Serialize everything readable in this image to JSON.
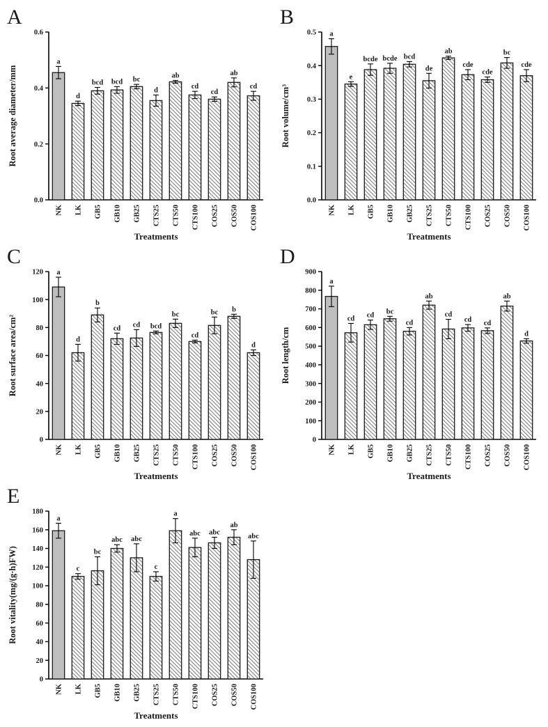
{
  "figure": {
    "background": "#ffffff",
    "colors": {
      "nk_bar_fill": "#bebebe",
      "hatch_line": "#808080",
      "bar_outline": "#1a1a1a",
      "axis": "#000000",
      "text": "#1a1a1a"
    },
    "xlabel": "Treatments",
    "categories": [
      "NK",
      "LK",
      "GB5",
      "GB10",
      "GB25",
      "CTS25",
      "CTS50",
      "CTS100",
      "COS25",
      "COS50",
      "COS100"
    ]
  },
  "chart_data": [
    {
      "type": "bar",
      "panel": "A",
      "ylabel": "Root average diameter/mm",
      "xlabel": "Treatments",
      "ylim": [
        0,
        0.6
      ],
      "ytick_values": [
        0,
        0.2,
        0.4,
        0.6
      ],
      "ytick_labels": [
        "0.0",
        "0.2",
        "0.4",
        "0.6"
      ],
      "categories": [
        "NK",
        "LK",
        "GB5",
        "GB10",
        "GB25",
        "CTS25",
        "CTS50",
        "CTS100",
        "COS25",
        "COS50",
        "COS100"
      ],
      "values": [
        0.455,
        0.345,
        0.39,
        0.393,
        0.405,
        0.355,
        0.422,
        0.375,
        0.36,
        0.42,
        0.372
      ],
      "errors": [
        0.022,
        0.008,
        0.012,
        0.012,
        0.008,
        0.02,
        0.005,
        0.013,
        0.008,
        0.016,
        0.016
      ],
      "sig_letters": [
        "a",
        "d",
        "bcd",
        "bcd",
        "bc",
        "d",
        "ab",
        "cd",
        "cd",
        "ab",
        "cd"
      ]
    },
    {
      "type": "bar",
      "panel": "B",
      "ylabel": "Root volume/cm³",
      "xlabel": "Treatments",
      "ylim": [
        0,
        0.5
      ],
      "ytick_values": [
        0,
        0.1,
        0.2,
        0.3,
        0.4,
        0.5
      ],
      "ytick_labels": [
        "0.0",
        "0.1",
        "0.2",
        "0.3",
        "0.4",
        "0.5"
      ],
      "categories": [
        "NK",
        "LK",
        "GB5",
        "GB10",
        "GB25",
        "CTS25",
        "CTS50",
        "CTS100",
        "COS25",
        "COS50",
        "COS100"
      ],
      "values": [
        0.457,
        0.345,
        0.388,
        0.392,
        0.404,
        0.355,
        0.423,
        0.373,
        0.358,
        0.408,
        0.37
      ],
      "errors": [
        0.023,
        0.007,
        0.017,
        0.015,
        0.008,
        0.022,
        0.005,
        0.015,
        0.008,
        0.016,
        0.018
      ],
      "sig_letters": [
        "a",
        "e",
        "bcde",
        "bcde",
        "bcd",
        "de",
        "ab",
        "cde",
        "cde",
        "bc",
        "cde"
      ]
    },
    {
      "type": "bar",
      "panel": "C",
      "ylabel": "Root surface area/cm²",
      "xlabel": "Treatments",
      "ylim": [
        0,
        120
      ],
      "ytick_values": [
        0,
        20,
        40,
        60,
        80,
        100,
        120
      ],
      "ytick_labels": [
        "0",
        "20",
        "40",
        "60",
        "80",
        "100",
        "120"
      ],
      "categories": [
        "NK",
        "LK",
        "GB5",
        "GB10",
        "GB25",
        "CTS25",
        "CTS50",
        "CTS100",
        "COS25",
        "COS50",
        "COS100"
      ],
      "values": [
        109,
        62,
        89,
        72,
        72.5,
        76.5,
        83,
        70,
        81.5,
        88,
        62
      ],
      "errors": [
        7,
        6,
        5,
        4,
        6,
        1,
        3,
        1,
        6,
        1.5,
        2
      ],
      "sig_letters": [
        "a",
        "d",
        "b",
        "cd",
        "cd",
        "bcd",
        "bc",
        "cd",
        "bc",
        "b",
        "d"
      ]
    },
    {
      "type": "bar",
      "panel": "D",
      "ylabel": "Root length/cm",
      "xlabel": "Treatments",
      "ylim": [
        0,
        900
      ],
      "ytick_values": [
        0,
        100,
        200,
        300,
        400,
        500,
        600,
        700,
        800,
        900
      ],
      "ytick_labels": [
        "0",
        "100",
        "200",
        "300",
        "400",
        "500",
        "600",
        "700",
        "800",
        "900"
      ],
      "categories": [
        "NK",
        "LK",
        "GB5",
        "GB10",
        "GB25",
        "CTS25",
        "CTS50",
        "CTS100",
        "COS25",
        "COS50",
        "COS100"
      ],
      "values": [
        767,
        572,
        615,
        647,
        580,
        720,
        592,
        598,
        583,
        715,
        528
      ],
      "errors": [
        55,
        50,
        25,
        13,
        20,
        22,
        52,
        18,
        15,
        27,
        12
      ],
      "sig_letters": [
        "a",
        "cd",
        "cd",
        "bc",
        "cd",
        "ab",
        "cd",
        "cd",
        "cd",
        "ab",
        "d"
      ]
    },
    {
      "type": "bar",
      "panel": "E",
      "ylabel": "Root vitality(mg/(g·h)FW)",
      "xlabel": "Treatments",
      "ylim": [
        0,
        180
      ],
      "ytick_values": [
        0,
        20,
        40,
        60,
        80,
        100,
        120,
        140,
        160,
        180
      ],
      "ytick_labels": [
        "0",
        "20",
        "40",
        "60",
        "80",
        "100",
        "120",
        "140",
        "160",
        "180"
      ],
      "categories": [
        "NK",
        "LK",
        "GB5",
        "GB10",
        "GB25",
        "CTS25",
        "CTS50",
        "CTS100",
        "COS25",
        "COS50",
        "COS100"
      ],
      "values": [
        159,
        110,
        116,
        140,
        130,
        110,
        159,
        141,
        146,
        152,
        128
      ],
      "errors": [
        8,
        3,
        15,
        4,
        15,
        5,
        13,
        10,
        6,
        8,
        20
      ],
      "sig_letters": [
        "a",
        "c",
        "bc",
        "abc",
        "abc",
        "c",
        "a",
        "abc",
        "abc",
        "ab",
        "abc"
      ]
    }
  ]
}
